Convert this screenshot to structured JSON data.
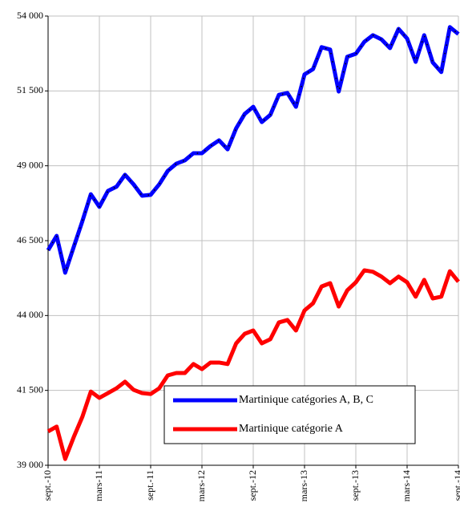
{
  "chart_data": {
    "type": "line",
    "categories": [
      "sept.-10",
      null,
      null,
      null,
      null,
      null,
      "mars-11",
      null,
      null,
      null,
      null,
      null,
      "sept.-11",
      null,
      null,
      null,
      null,
      null,
      "mars-12",
      null,
      null,
      null,
      null,
      null,
      "sept.-12",
      null,
      null,
      null,
      null,
      null,
      "mars-13",
      null,
      null,
      null,
      null,
      null,
      "sept.-13",
      null,
      null,
      null,
      null,
      null,
      "mars-14",
      null,
      null,
      null,
      null,
      null,
      "sept.-14"
    ],
    "series": [
      {
        "name": "Martinique catégories A, B, C",
        "color": "#0000ff",
        "values": [
          46180,
          46660,
          45430,
          46290,
          47140,
          48050,
          47630,
          48160,
          48300,
          48700,
          48380,
          48000,
          48030,
          48380,
          48830,
          49070,
          49180,
          49420,
          49420,
          49660,
          49850,
          49550,
          50250,
          50730,
          50970,
          50460,
          50700,
          51370,
          51430,
          50970,
          52050,
          52230,
          52960,
          52880,
          51480,
          52640,
          52740,
          53140,
          53360,
          53220,
          52930,
          53570,
          53250,
          52470,
          53360,
          52450,
          52130,
          53630,
          53400
        ]
      },
      {
        "name": "Martinique catégorie A",
        "color": "#ff0000",
        "values": [
          40130,
          40290,
          39210,
          39940,
          40610,
          41460,
          41250,
          41410,
          41570,
          41790,
          41520,
          41410,
          41380,
          41570,
          42000,
          42080,
          42080,
          42380,
          42210,
          42430,
          42430,
          42380,
          43070,
          43390,
          43500,
          43070,
          43210,
          43770,
          43850,
          43500,
          44170,
          44410,
          44970,
          45080,
          44300,
          44840,
          45110,
          45510,
          45460,
          45300,
          45080,
          45300,
          45110,
          44630,
          45190,
          44570,
          44630,
          45480,
          45130
        ]
      }
    ],
    "ylim": [
      39000,
      54000
    ],
    "yticks": [
      {
        "value": 39000,
        "label": "39 000"
      },
      {
        "value": 41500,
        "label": "41 500"
      },
      {
        "value": 44000,
        "label": "44 000"
      },
      {
        "value": 46500,
        "label": "46 500"
      },
      {
        "value": 49000,
        "label": "49 000"
      },
      {
        "value": 51500,
        "label": "51 500"
      },
      {
        "value": 54000,
        "label": "54 000"
      }
    ],
    "grid": true
  }
}
